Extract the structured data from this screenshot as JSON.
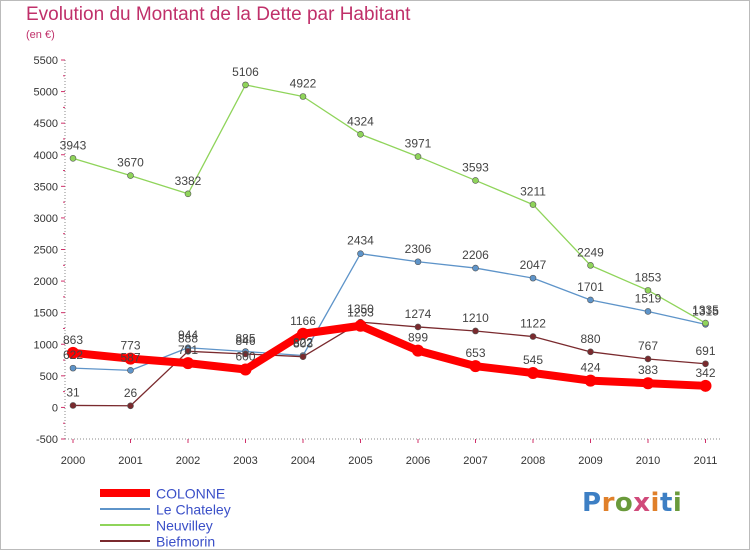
{
  "header": {
    "title": "Evolution du Montant de la Dette par Habitant",
    "subtitle": "(en €)"
  },
  "brand": {
    "text": "Proxiti",
    "letter_colors": [
      "#3d7fc4",
      "#e0802a",
      "#6a9a3b",
      "#d04a7a",
      "#e0802a",
      "#3d7fc4",
      "#6a9a3b"
    ]
  },
  "chart_data": {
    "type": "line",
    "title": "Evolution du Montant de la Dette par Habitant",
    "subtitle": "(en €)",
    "x": [
      "2000",
      "2001",
      "2002",
      "2003",
      "2004",
      "2005",
      "2006",
      "2007",
      "2008",
      "2009",
      "2010",
      "2011"
    ],
    "ylim": [
      -500,
      5500
    ],
    "yticks": [
      -500,
      0,
      500,
      1000,
      1500,
      2000,
      2500,
      3000,
      3500,
      4000,
      4500,
      5000,
      5500
    ],
    "grid": false,
    "legend_position": "bottom-left",
    "series": [
      {
        "name": "COLONNE",
        "color": "#ff0000",
        "width": 8,
        "marker": 6,
        "values": [
          863,
          773,
          701,
          600,
          1166,
          1293,
          899,
          653,
          545,
          424,
          383,
          342
        ]
      },
      {
        "name": "Le Chateley",
        "color": "#5e94c9",
        "width": 1.3,
        "marker": 3,
        "values": [
          622,
          587,
          944,
          885,
          822,
          2434,
          2306,
          2206,
          2047,
          1701,
          1519,
          1315
        ]
      },
      {
        "name": "Neuvilley",
        "color": "#8fd45a",
        "width": 1.3,
        "marker": 3,
        "values": [
          3943,
          3670,
          3382,
          5106,
          4922,
          4324,
          3971,
          3593,
          3211,
          2249,
          1853,
          1335
        ]
      },
      {
        "name": "Biefmorin",
        "color": "#7a2a2e",
        "width": 1.3,
        "marker": 3,
        "values": [
          31,
          26,
          888,
          846,
          803,
          1350,
          1274,
          1210,
          1122,
          880,
          767,
          691
        ]
      }
    ]
  }
}
